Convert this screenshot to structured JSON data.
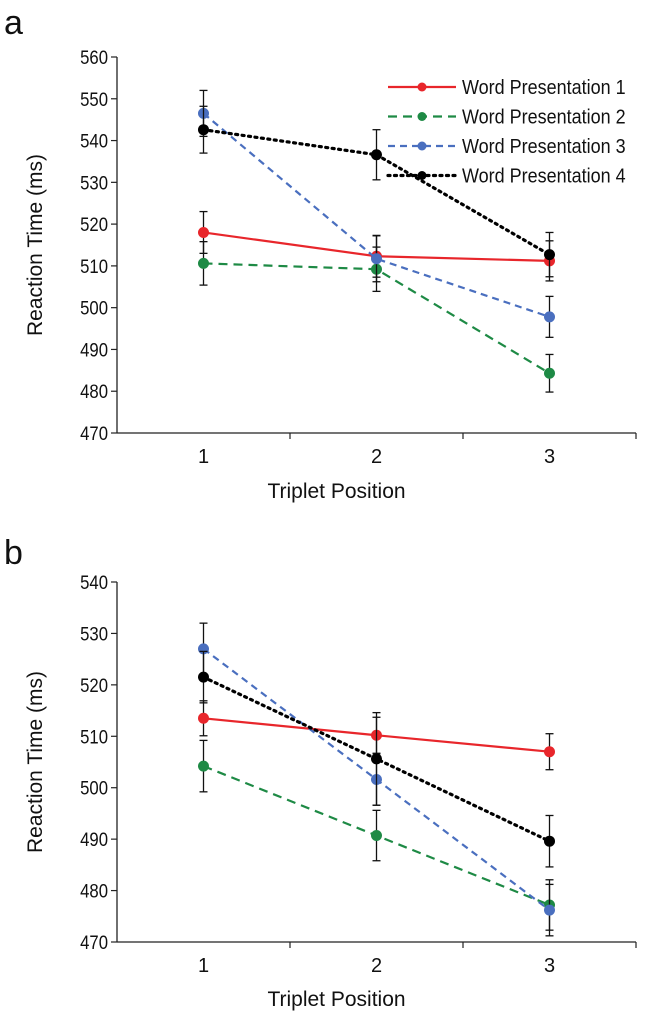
{
  "chart_data": [
    {
      "panel_label": "a",
      "type": "line",
      "xlabel": "Triplet Position",
      "ylabel": "Reaction Time (ms)",
      "categories": [
        "1",
        "2",
        "3"
      ],
      "ylim": [
        470,
        560
      ],
      "yticks": [
        470,
        480,
        490,
        500,
        510,
        520,
        530,
        540,
        550,
        560
      ],
      "grid": false,
      "legend": "top-right",
      "series": [
        {
          "name": "Word Presentation 1",
          "color": "#e8262b",
          "style": "solid",
          "values": [
            518.0,
            512.3,
            511.2
          ],
          "errors": [
            5.0,
            5.0,
            4.8
          ]
        },
        {
          "name": "Word Presentation 2",
          "color": "#1e8a45",
          "style": "dashed",
          "values": [
            510.6,
            509.2,
            484.3
          ],
          "errors": [
            5.2,
            5.3,
            4.5
          ]
        },
        {
          "name": "Word Presentation 3",
          "color": "#4a6fbf",
          "style": "dashed-short",
          "values": [
            546.5,
            511.7,
            497.8
          ],
          "errors": [
            5.5,
            5.5,
            4.9
          ]
        },
        {
          "name": "Word Presentation 4",
          "color": "#000000",
          "style": "dotted",
          "values": [
            542.6,
            536.6,
            512.7
          ],
          "errors": [
            5.6,
            6.0,
            5.3
          ]
        }
      ]
    },
    {
      "panel_label": "b",
      "type": "line",
      "xlabel": "Triplet Position",
      "ylabel": "Reaction Time (ms)",
      "categories": [
        "1",
        "2",
        "3"
      ],
      "ylim": [
        470,
        540
      ],
      "yticks": [
        470,
        480,
        490,
        500,
        510,
        520,
        530,
        540
      ],
      "grid": false,
      "series": [
        {
          "name": "Word Presentation 1",
          "color": "#e8262b",
          "style": "solid",
          "values": [
            513.5,
            510.2,
            507.0
          ],
          "errors": [
            3.4,
            3.5,
            3.5
          ]
        },
        {
          "name": "Word Presentation 2",
          "color": "#1e8a45",
          "style": "dashed",
          "values": [
            504.2,
            490.7,
            477.2
          ],
          "errors": [
            5.0,
            4.9,
            4.9
          ]
        },
        {
          "name": "Word Presentation 3",
          "color": "#4a6fbf",
          "style": "dashed-short",
          "values": [
            527.0,
            501.6,
            476.2
          ],
          "errors": [
            5.0,
            5.0,
            5.0
          ]
        },
        {
          "name": "Word Presentation 4",
          "color": "#000000",
          "style": "dotted",
          "values": [
            521.5,
            505.6,
            489.6
          ],
          "errors": [
            5.0,
            9.0,
            5.0
          ]
        }
      ]
    }
  ]
}
